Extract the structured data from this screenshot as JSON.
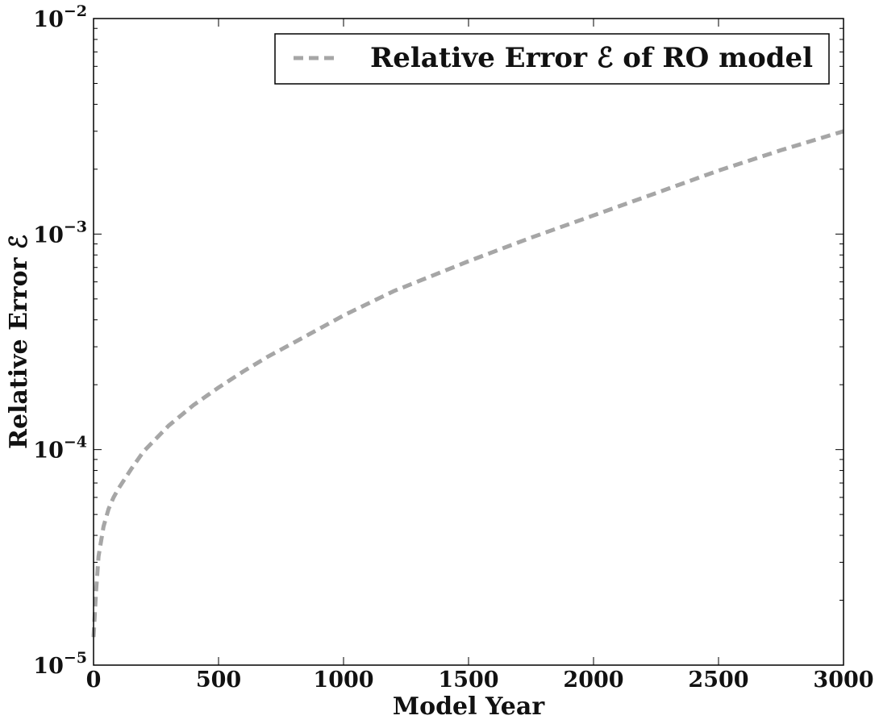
{
  "chart_data": {
    "type": "line",
    "xlabel": "Model Year",
    "ylabel": "Relative Error ℰ",
    "xlim": [
      0,
      3000
    ],
    "ylim": [
      1e-05,
      0.01
    ],
    "yscale": "log",
    "grid": false,
    "legend_position": "top-right",
    "x_ticks": [
      0,
      500,
      1000,
      1500,
      2000,
      2500,
      3000
    ],
    "x_tick_labels": [
      "0",
      "500",
      "1000",
      "1500",
      "2000",
      "2500",
      "3000"
    ],
    "y_ticks": [
      1e-05,
      0.0001,
      0.001,
      0.01
    ],
    "y_tick_labels": [
      {
        "base": "10",
        "exp": "−5"
      },
      {
        "base": "10",
        "exp": "−4"
      },
      {
        "base": "10",
        "exp": "−3"
      },
      {
        "base": "10",
        "exp": "−2"
      }
    ],
    "series": [
      {
        "name": "Relative Error ℰ of RO model",
        "color": "#a6a6a6",
        "style": "dashed",
        "x": [
          0,
          10,
          20,
          40,
          60,
          80,
          100,
          150,
          200,
          300,
          400,
          500,
          600,
          700,
          800,
          1000,
          1200,
          1500,
          1750,
          2000,
          2250,
          2500,
          2750,
          3000
        ],
        "y": [
          1.35e-05,
          2.2e-05,
          3.2e-05,
          4.4e-05,
          5.3e-05,
          6e-05,
          6.6e-05,
          8.1e-05,
          9.8e-05,
          0.000129,
          0.000161,
          0.000194,
          0.000231,
          0.000271,
          0.000313,
          0.000419,
          0.000543,
          0.000748,
          0.000962,
          0.00122,
          0.00155,
          0.00197,
          0.00245,
          0.003
        ]
      }
    ]
  }
}
